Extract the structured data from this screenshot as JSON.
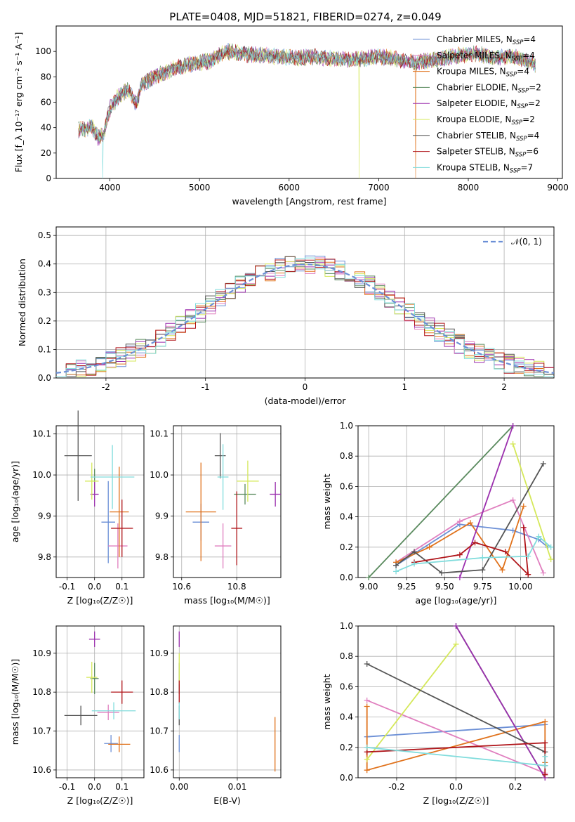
{
  "title": "PLATE=0408, MJD=51821, FIBERID=0274, z=0.049",
  "colors": {
    "Chabrier MILES": "#6b8fd6",
    "Salpeter MILES": "#e07fbf",
    "Kroupa MILES": "#e0721c",
    "Chabrier ELODIE": "#5a8a5e",
    "Salpeter ELODIE": "#9b2fae",
    "Kroupa ELODIE": "#d5e85a",
    "Chabrier STELIB": "#555555",
    "Salpeter STELIB": "#b0151a",
    "Kroupa STELIB": "#80dcdc"
  },
  "chart_data": [
    {
      "type": "line",
      "name": "spectrum",
      "xlabel": "wavelength [Angstrom, rest frame]",
      "ylabel": "Flux [f_λ 10⁻¹⁷ erg cm⁻² s⁻¹ A⁻¹]",
      "xlim": [
        3400,
        9050
      ],
      "ylim": [
        0,
        120
      ],
      "xticks": [
        4000,
        5000,
        6000,
        7000,
        8000,
        9000
      ],
      "yticks": [
        0,
        20,
        40,
        60,
        80,
        100
      ],
      "legend_position": "top-right",
      "legend": [
        {
          "model": "Chabrier MILES",
          "label": "Chabrier MILES, N",
          "n": "=4"
        },
        {
          "model": "Salpeter MILES",
          "label": "Salpeter MILES, N",
          "n": "=4"
        },
        {
          "model": "Kroupa MILES",
          "label": "Kroupa MILES, N",
          "n": "=4"
        },
        {
          "model": "Chabrier ELODIE",
          "label": "Chabrier ELODIE, N",
          "n": "=2"
        },
        {
          "model": "Salpeter ELODIE",
          "label": "Salpeter ELODIE, N",
          "n": "=2"
        },
        {
          "model": "Kroupa ELODIE",
          "label": "Kroupa ELODIE, N",
          "n": "=2"
        },
        {
          "model": "Chabrier STELIB",
          "label": "Chabrier STELIB, N",
          "n": "=4"
        },
        {
          "model": "Salpeter STELIB",
          "label": "Salpeter STELIB, N",
          "n": "=6"
        },
        {
          "model": "Kroupa STELIB",
          "label": "Kroupa STELIB, N",
          "n": "=7"
        }
      ],
      "legend_sub": "SSP",
      "continuum": [
        [
          3650,
          38
        ],
        [
          3800,
          40
        ],
        [
          3870,
          32
        ],
        [
          3930,
          35
        ],
        [
          4000,
          55
        ],
        [
          4100,
          65
        ],
        [
          4200,
          70
        ],
        [
          4300,
          58
        ],
        [
          4350,
          74
        ],
        [
          4500,
          80
        ],
        [
          4700,
          86
        ],
        [
          4900,
          90
        ],
        [
          5100,
          92
        ],
        [
          5200,
          96
        ],
        [
          5300,
          100
        ],
        [
          5500,
          98
        ],
        [
          5700,
          97
        ],
        [
          5900,
          96
        ],
        [
          6100,
          95
        ],
        [
          6300,
          96
        ],
        [
          6500,
          94
        ],
        [
          6800,
          94
        ],
        [
          7000,
          96
        ],
        [
          7200,
          94
        ],
        [
          7400,
          91
        ],
        [
          7600,
          93
        ],
        [
          7900,
          97
        ],
        [
          8100,
          98
        ],
        [
          8300,
          95
        ],
        [
          8500,
          96
        ],
        [
          8750,
          90
        ]
      ],
      "dropouts": [
        [
          3920,
          "Kroupa STELIB"
        ],
        [
          6780,
          "Kroupa ELODIE"
        ],
        [
          7410,
          "Kroupa MILES"
        ]
      ]
    },
    {
      "type": "line",
      "name": "residual-histogram",
      "xlabel": "(data-model)/error",
      "ylabel": "Normed distribution",
      "xlim": [
        -2.5,
        2.5
      ],
      "ylim": [
        0,
        0.53
      ],
      "xticks": [
        -2,
        -1,
        0,
        1,
        2
      ],
      "yticks": [
        0.0,
        0.1,
        0.2,
        0.3,
        0.4,
        0.5
      ],
      "legend": "𝒩(0, 1)",
      "legend_position": "top-right",
      "reference": "normal-0-1"
    },
    {
      "type": "scatter",
      "name": "age-vs-Z",
      "xlabel": "Z [log₁₀(Z/Z☉)]",
      "ylabel": "age  [log₁₀(age/yr)]",
      "xlim": [
        -0.14,
        0.18
      ],
      "ylim": [
        9.75,
        10.12
      ],
      "xticks": [
        -0.1,
        0.0,
        0.1
      ],
      "yticks": [
        9.8,
        9.9,
        10.0,
        10.1
      ],
      "points": [
        {
          "model": "Chabrier MILES",
          "x": 0.05,
          "xerr": 0.025,
          "y": 9.885,
          "yerr": 0.1
        },
        {
          "model": "Salpeter MILES",
          "x": 0.085,
          "xerr": 0.035,
          "y": 9.827,
          "yerr": 0.055
        },
        {
          "model": "Kroupa MILES",
          "x": 0.09,
          "xerr": 0.035,
          "y": 9.91,
          "yerr": 0.11
        },
        {
          "model": "Chabrier ELODIE",
          "x": 0.0,
          "xerr": 0.01,
          "y": 9.985,
          "yerr": 0.03
        },
        {
          "model": "Salpeter ELODIE",
          "x": 0.0,
          "xerr": 0.015,
          "y": 9.953,
          "yerr": 0.03
        },
        {
          "model": "Kroupa ELODIE",
          "x": -0.01,
          "xerr": 0.025,
          "y": 9.985,
          "yerr": 0.045
        },
        {
          "model": "Chabrier STELIB",
          "x": -0.06,
          "xerr": 0.05,
          "y": 10.047,
          "yerr": 0.11
        },
        {
          "model": "Salpeter STELIB",
          "x": 0.1,
          "xerr": 0.04,
          "y": 9.87,
          "yerr": 0.07
        },
        {
          "model": "Kroupa STELIB",
          "x": 0.065,
          "xerr": 0.08,
          "y": 9.995,
          "yerr": 0.078
        }
      ]
    },
    {
      "type": "scatter",
      "name": "age-vs-mass",
      "xlabel": "mass [log₁₀(M/M☉)]",
      "ylabel": "",
      "xlim": [
        10.57,
        10.96
      ],
      "ylim": [
        9.75,
        10.12
      ],
      "xticks": [
        10.6,
        10.8
      ],
      "yticks": [
        9.8,
        9.9,
        10.0,
        10.1
      ],
      "points": [
        {
          "model": "Chabrier MILES",
          "x": 10.67,
          "xerr": 0.03,
          "y": 9.885,
          "yerr": 0.045
        },
        {
          "model": "Salpeter MILES",
          "x": 10.75,
          "xerr": 0.03,
          "y": 9.827,
          "yerr": 0.055
        },
        {
          "model": "Kroupa MILES",
          "x": 10.67,
          "xerr": 0.055,
          "y": 9.91,
          "yerr": 0.12
        },
        {
          "model": "Chabrier ELODIE",
          "x": 10.83,
          "xerr": 0.04,
          "y": 9.953,
          "yerr": 0.025
        },
        {
          "model": "Salpeter ELODIE",
          "x": 10.94,
          "xerr": 0.02,
          "y": 9.953,
          "yerr": 0.03
        },
        {
          "model": "Kroupa ELODIE",
          "x": 10.84,
          "xerr": 0.04,
          "y": 9.985,
          "yerr": 0.05
        },
        {
          "model": "Chabrier STELIB",
          "x": 10.74,
          "xerr": 0.02,
          "y": 10.047,
          "yerr": 0.055
        },
        {
          "model": "Salpeter STELIB",
          "x": 10.8,
          "xerr": 0.02,
          "y": 9.87,
          "yerr": 0.09
        },
        {
          "model": "Kroupa STELIB",
          "x": 10.75,
          "xerr": 0.02,
          "y": 9.995,
          "yerr": 0.08
        }
      ]
    },
    {
      "type": "line",
      "name": "weight-vs-age",
      "xlabel": "age  [log₁₀(age/yr)]",
      "ylabel": "mass weight",
      "xlim": [
        8.93,
        10.22
      ],
      "ylim": [
        0,
        1.0
      ],
      "xticks": [
        9.0,
        9.25,
        9.5,
        9.75,
        10.0
      ],
      "yticks": [
        0.0,
        0.2,
        0.4,
        0.6,
        0.8,
        1.0
      ],
      "series": [
        {
          "model": "Chabrier MILES",
          "points": [
            [
              9.18,
              0.08
            ],
            [
              9.6,
              0.35
            ],
            [
              9.95,
              0.31
            ],
            [
              10.12,
              0.25
            ],
            [
              10.18,
              0.2
            ]
          ]
        },
        {
          "model": "Salpeter MILES",
          "points": [
            [
              9.18,
              0.1
            ],
            [
              9.6,
              0.37
            ],
            [
              9.95,
              0.51
            ],
            [
              10.15,
              0.03
            ]
          ]
        },
        {
          "model": "Kroupa MILES",
          "points": [
            [
              9.18,
              0.1
            ],
            [
              9.4,
              0.2
            ],
            [
              9.67,
              0.36
            ],
            [
              9.88,
              0.05
            ],
            [
              10.02,
              0.47
            ]
          ]
        },
        {
          "model": "Chabrier ELODIE",
          "points": [
            [
              9.0,
              0.0
            ],
            [
              9.95,
              1.0
            ]
          ]
        },
        {
          "model": "Salpeter ELODIE",
          "points": [
            [
              9.6,
              0.0
            ],
            [
              9.95,
              1.0
            ]
          ]
        },
        {
          "model": "Kroupa ELODIE",
          "points": [
            [
              9.95,
              0.88
            ],
            [
              10.2,
              0.12
            ]
          ]
        },
        {
          "model": "Chabrier STELIB",
          "points": [
            [
              9.18,
              0.08
            ],
            [
              9.3,
              0.17
            ],
            [
              9.48,
              0.03
            ],
            [
              9.75,
              0.05
            ],
            [
              10.15,
              0.75
            ]
          ]
        },
        {
          "model": "Salpeter STELIB",
          "points": [
            [
              9.3,
              0.1
            ],
            [
              9.6,
              0.15
            ],
            [
              9.7,
              0.23
            ],
            [
              9.9,
              0.17
            ],
            [
              10.05,
              0.02
            ],
            [
              10.02,
              0.33
            ]
          ]
        },
        {
          "model": "Kroupa STELIB",
          "points": [
            [
              9.18,
              0.04
            ],
            [
              9.3,
              0.09
            ],
            [
              9.75,
              0.13
            ],
            [
              10.05,
              0.14
            ],
            [
              10.12,
              0.27
            ],
            [
              10.2,
              0.2
            ]
          ]
        }
      ]
    },
    {
      "type": "scatter",
      "name": "mass-vs-Z",
      "xlabel": "Z [log₁₀(Z/Z☉)]",
      "ylabel": "mass [log₁₀(M/M☉)]",
      "xlim": [
        -0.14,
        0.18
      ],
      "ylim": [
        10.58,
        10.97
      ],
      "xticks": [
        -0.1,
        0.0,
        0.1
      ],
      "yticks": [
        10.6,
        10.7,
        10.8,
        10.9
      ],
      "points": [
        {
          "model": "Chabrier MILES",
          "x": 0.06,
          "xerr": 0.025,
          "y": 10.668,
          "yerr": 0.022
        },
        {
          "model": "Salpeter MILES",
          "x": 0.05,
          "xerr": 0.04,
          "y": 10.748,
          "yerr": 0.02
        },
        {
          "model": "Kroupa MILES",
          "x": 0.09,
          "xerr": 0.04,
          "y": 10.666,
          "yerr": 0.02
        },
        {
          "model": "Chabrier ELODIE",
          "x": 0.0,
          "xerr": 0.015,
          "y": 10.835,
          "yerr": 0.04
        },
        {
          "model": "Salpeter ELODIE",
          "x": 0.0,
          "xerr": 0.02,
          "y": 10.936,
          "yerr": 0.02
        },
        {
          "model": "Kroupa ELODIE",
          "x": -0.01,
          "xerr": 0.02,
          "y": 10.838,
          "yerr": 0.04
        },
        {
          "model": "Chabrier STELIB",
          "x": -0.05,
          "xerr": 0.06,
          "y": 10.74,
          "yerr": 0.025
        },
        {
          "model": "Salpeter STELIB",
          "x": 0.1,
          "xerr": 0.04,
          "y": 10.8,
          "yerr": 0.03
        },
        {
          "model": "Kroupa STELIB",
          "x": 0.07,
          "xerr": 0.08,
          "y": 10.752,
          "yerr": 0.022
        }
      ]
    },
    {
      "type": "scatter",
      "name": "mass-vs-EBV",
      "xlabel": "E(B-V)",
      "ylabel": "",
      "xlim": [
        -0.001,
        0.0175
      ],
      "ylim": [
        10.58,
        10.97
      ],
      "xticks": [
        0.0,
        0.01
      ],
      "yticks": [
        10.6,
        10.7,
        10.8,
        10.9
      ],
      "points": [
        {
          "model": "Chabrier MILES",
          "x": 0.0,
          "y": 10.668,
          "yerr": 0.022
        },
        {
          "model": "Salpeter MILES",
          "x": 0.0,
          "y": 10.748,
          "yerr": 0.02
        },
        {
          "model": "Kroupa MILES",
          "x": 0.0165,
          "y": 10.666,
          "yerr": 0.07
        },
        {
          "model": "Chabrier ELODIE",
          "x": 0.0,
          "y": 10.835,
          "yerr": 0.04
        },
        {
          "model": "Salpeter ELODIE",
          "x": 0.0,
          "y": 10.936,
          "yerr": 0.02
        },
        {
          "model": "Kroupa ELODIE",
          "x": 0.0,
          "y": 10.86,
          "yerr": 0.04
        },
        {
          "model": "Chabrier STELIB",
          "x": 0.0,
          "y": 10.74,
          "yerr": 0.025
        },
        {
          "model": "Salpeter STELIB",
          "x": 0.0,
          "y": 10.8,
          "yerr": 0.03
        },
        {
          "model": "Kroupa STELIB",
          "x": 0.0,
          "y": 10.752,
          "yerr": 0.022
        }
      ]
    },
    {
      "type": "line",
      "name": "weight-vs-Z",
      "xlabel": "Z [log₁₀(Z/Z☉)]",
      "ylabel": "mass weight",
      "xlim": [
        -0.33,
        0.33
      ],
      "ylim": [
        0,
        1.0
      ],
      "xticks": [
        -0.2,
        0.0,
        0.2
      ],
      "yticks": [
        0.0,
        0.2,
        0.4,
        0.6,
        0.8,
        1.0
      ],
      "series": [
        {
          "model": "Chabrier MILES",
          "points": [
            [
              -0.3,
              0.27
            ],
            [
              0.3,
              0.35
            ]
          ]
        },
        {
          "model": "Salpeter MILES",
          "points": [
            [
              -0.3,
              0.51
            ],
            [
              0.3,
              0.03
            ]
          ]
        },
        {
          "model": "Kroupa MILES",
          "points": [
            [
              -0.3,
              0.47
            ],
            [
              -0.3,
              0.05
            ],
            [
              0.3,
              0.37
            ],
            [
              0.3,
              0.1
            ]
          ]
        },
        {
          "model": "Chabrier ELODIE",
          "points": [
            [
              0.0,
              1.0
            ],
            [
              0.3,
              0.0
            ]
          ]
        },
        {
          "model": "Salpeter ELODIE",
          "points": [
            [
              0.0,
              1.0
            ],
            [
              0.3,
              0.0
            ]
          ]
        },
        {
          "model": "Kroupa ELODIE",
          "points": [
            [
              -0.3,
              0.12
            ],
            [
              0.0,
              0.88
            ]
          ]
        },
        {
          "model": "Chabrier STELIB",
          "points": [
            [
              -0.3,
              0.75
            ],
            [
              0.3,
              0.17
            ],
            [
              0.3,
              0.08
            ]
          ]
        },
        {
          "model": "Salpeter STELIB",
          "points": [
            [
              -0.3,
              0.17
            ],
            [
              0.3,
              0.23
            ],
            [
              0.3,
              0.02
            ]
          ]
        },
        {
          "model": "Kroupa STELIB",
          "points": [
            [
              -0.3,
              0.2
            ],
            [
              0.3,
              0.08
            ],
            [
              0.3,
              0.14
            ]
          ]
        }
      ]
    }
  ]
}
